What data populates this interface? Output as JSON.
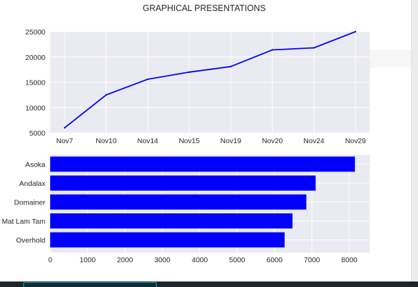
{
  "title": "GRAPHICAL PRESENTATIONS",
  "chart_data": [
    {
      "type": "line",
      "x": [
        "Nov7",
        "Nov10",
        "Nov14",
        "Nov15",
        "Nov19",
        "Nov20",
        "Nov24",
        "Nov29"
      ],
      "series": [
        {
          "values": [
            6000,
            12500,
            15600,
            17000,
            18100,
            21400,
            21800,
            25000
          ],
          "color": "#0000ff"
        }
      ],
      "ylim": [
        5000,
        25000
      ],
      "yticks": [
        5000,
        10000,
        15000,
        20000,
        25000
      ],
      "grid": true,
      "background": "#eaeaf2"
    },
    {
      "type": "bar",
      "orientation": "horizontal",
      "categories": [
        "Asoka",
        "Andalax",
        "Domainer",
        "Mat Lam Tam",
        "Overhold"
      ],
      "values": [
        8150,
        7100,
        6850,
        6480,
        6270
      ],
      "xlim": [
        0,
        8550
      ],
      "xticks": [
        0,
        1000,
        2000,
        3000,
        4000,
        5000,
        6000,
        7000,
        8000
      ],
      "grid": true,
      "color": "#0000ff",
      "background": "#eaeaf2"
    }
  ]
}
